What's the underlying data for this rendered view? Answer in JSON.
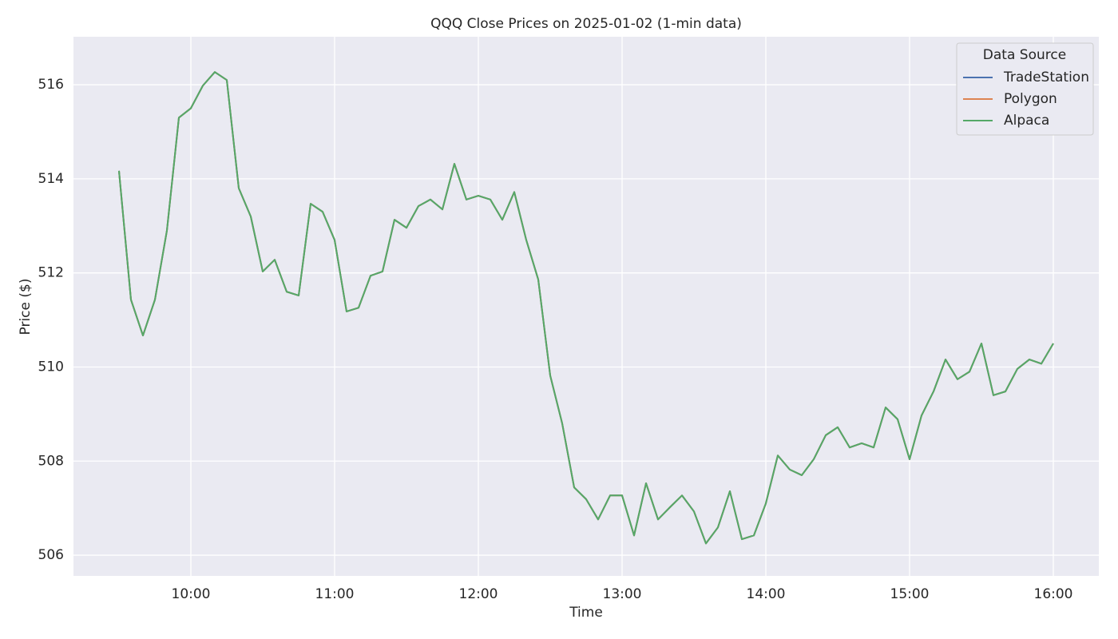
{
  "chart_data": {
    "type": "line",
    "title": "QQQ Close Prices on 2025-01-02 (1-min data)",
    "x_label": "Time",
    "y_label": "Price ($)",
    "legend_title": "Data Source",
    "legend_position": "upper right",
    "grid": true,
    "x": [
      "09:30",
      "09:35",
      "09:40",
      "09:45",
      "09:50",
      "09:55",
      "10:00",
      "10:05",
      "10:10",
      "10:15",
      "10:20",
      "10:25",
      "10:30",
      "10:35",
      "10:40",
      "10:45",
      "10:50",
      "10:55",
      "11:00",
      "11:05",
      "11:10",
      "11:15",
      "11:20",
      "11:25",
      "11:30",
      "11:35",
      "11:40",
      "11:45",
      "11:50",
      "11:55",
      "12:00",
      "12:05",
      "12:10",
      "12:15",
      "12:20",
      "12:25",
      "12:30",
      "12:35",
      "12:40",
      "12:45",
      "12:50",
      "12:55",
      "13:00",
      "13:05",
      "13:10",
      "13:15",
      "13:20",
      "13:25",
      "13:30",
      "13:35",
      "13:40",
      "13:45",
      "13:50",
      "13:55",
      "14:00",
      "14:05",
      "14:10",
      "14:15",
      "14:20",
      "14:25",
      "14:30",
      "14:35",
      "14:40",
      "14:45",
      "14:50",
      "14:55",
      "15:00",
      "15:05",
      "15:10",
      "15:15",
      "15:20",
      "15:25",
      "15:30",
      "15:35",
      "15:40",
      "15:45",
      "15:50",
      "15:55",
      "16:00"
    ],
    "series": [
      {
        "name": "TradeStation",
        "color": "#4c72b0",
        "values": [
          514.17,
          511.43,
          510.67,
          511.43,
          512.9,
          515.3,
          515.5,
          515.98,
          516.27,
          516.1,
          513.8,
          513.2,
          512.03,
          512.28,
          511.6,
          511.52,
          513.47,
          513.3,
          512.7,
          511.18,
          511.26,
          511.94,
          512.03,
          513.13,
          512.96,
          513.42,
          513.56,
          513.35,
          514.32,
          513.56,
          513.64,
          513.56,
          513.13,
          513.72,
          512.7,
          511.86,
          509.82,
          508.8,
          507.44,
          507.19,
          506.76,
          507.27,
          507.27,
          506.42,
          507.53,
          506.76,
          507.02,
          507.27,
          506.93,
          506.25,
          506.59,
          507.36,
          506.34,
          506.42,
          507.1,
          508.12,
          507.82,
          507.7,
          508.04,
          508.55,
          508.72,
          508.29,
          508.38,
          508.29,
          509.14,
          508.89,
          508.04,
          508.97,
          509.48,
          510.16,
          509.74,
          509.9,
          510.5,
          509.4,
          509.48,
          509.96,
          510.16,
          510.07,
          510.5
        ]
      },
      {
        "name": "Polygon",
        "color": "#dd8452",
        "values": [
          514.17,
          511.43,
          510.67,
          511.43,
          512.9,
          515.3,
          515.5,
          515.98,
          516.27,
          516.1,
          513.8,
          513.2,
          512.03,
          512.28,
          511.6,
          511.52,
          513.47,
          513.3,
          512.7,
          511.18,
          511.26,
          511.94,
          512.03,
          513.13,
          512.96,
          513.42,
          513.56,
          513.35,
          514.32,
          513.56,
          513.64,
          513.56,
          513.13,
          513.72,
          512.7,
          511.86,
          509.82,
          508.8,
          507.44,
          507.19,
          506.76,
          507.27,
          507.27,
          506.42,
          507.53,
          506.76,
          507.02,
          507.27,
          506.93,
          506.25,
          506.59,
          507.36,
          506.34,
          506.42,
          507.1,
          508.12,
          507.82,
          507.7,
          508.04,
          508.55,
          508.72,
          508.29,
          508.38,
          508.29,
          509.14,
          508.89,
          508.04,
          508.97,
          509.48,
          510.16,
          509.74,
          509.9,
          510.5,
          509.4,
          509.48,
          509.96,
          510.16,
          510.07,
          510.5
        ]
      },
      {
        "name": "Alpaca",
        "color": "#55a868",
        "values": [
          514.17,
          511.43,
          510.67,
          511.43,
          512.9,
          515.3,
          515.5,
          515.98,
          516.27,
          516.1,
          513.8,
          513.2,
          512.03,
          512.28,
          511.6,
          511.52,
          513.47,
          513.3,
          512.7,
          511.18,
          511.26,
          511.94,
          512.03,
          513.13,
          512.96,
          513.42,
          513.56,
          513.35,
          514.32,
          513.56,
          513.64,
          513.56,
          513.13,
          513.72,
          512.7,
          511.86,
          509.82,
          508.8,
          507.44,
          507.19,
          506.76,
          507.27,
          507.27,
          506.42,
          507.53,
          506.76,
          507.02,
          507.27,
          506.93,
          506.25,
          506.59,
          507.36,
          506.34,
          506.42,
          507.1,
          508.12,
          507.82,
          507.7,
          508.04,
          508.55,
          508.72,
          508.29,
          508.38,
          508.29,
          509.14,
          508.89,
          508.04,
          508.97,
          509.48,
          510.16,
          509.74,
          509.9,
          510.5,
          509.4,
          509.48,
          509.96,
          510.16,
          510.07,
          510.5
        ]
      }
    ],
    "xlim": [
      "09:11",
      "16:19"
    ],
    "xticks": [
      "10:00",
      "11:00",
      "12:00",
      "13:00",
      "14:00",
      "15:00",
      "16:00"
    ],
    "ylim": [
      505.56,
      517.02
    ],
    "yticks": [
      506,
      508,
      510,
      512,
      514,
      516
    ]
  }
}
